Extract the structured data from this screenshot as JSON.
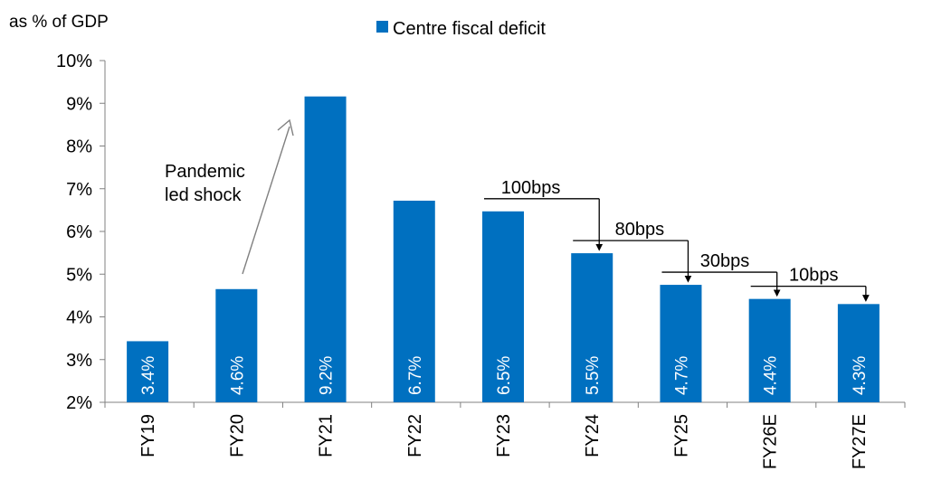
{
  "chart_data": {
    "type": "bar",
    "title": "",
    "ylabel": "as % of GDP",
    "xlabel": "",
    "ylim": [
      2,
      10
    ],
    "yticks": [
      2,
      3,
      4,
      5,
      6,
      7,
      8,
      9,
      10
    ],
    "ytick_labels": [
      "2%",
      "3%",
      "4%",
      "5%",
      "6%",
      "7%",
      "8%",
      "9%",
      "10%"
    ],
    "categories": [
      "FY19",
      "FY20",
      "FY21",
      "FY22",
      "FY23",
      "FY24",
      "FY25",
      "FY26E",
      "FY27E"
    ],
    "series": [
      {
        "name": "Centre fiscal deficit",
        "color": "#0070c0",
        "values": [
          3.43,
          4.65,
          9.16,
          6.72,
          6.47,
          5.49,
          4.75,
          4.42,
          4.3
        ],
        "labels": [
          "3.4%",
          "4.6%",
          "9.2%",
          "6.7%",
          "6.5%",
          "5.5%",
          "4.7%",
          "4.4%",
          "4.3%"
        ]
      }
    ],
    "legend": {
      "position": "top-center",
      "entries": [
        "Centre fiscal deficit"
      ]
    },
    "grid": false,
    "annotations": {
      "shock": {
        "line1": "Pandemic",
        "line2": "led shock",
        "from_category": "FY20",
        "to_category": "FY21"
      },
      "steps": [
        {
          "label": "100bps",
          "from": "FY23",
          "to": "FY24"
        },
        {
          "label": "80bps",
          "from": "FY24",
          "to": "FY25"
        },
        {
          "label": "30bps",
          "from": "FY25",
          "to": "FY26E"
        },
        {
          "label": "10bps",
          "from": "FY26E",
          "to": "FY27E"
        }
      ]
    }
  }
}
